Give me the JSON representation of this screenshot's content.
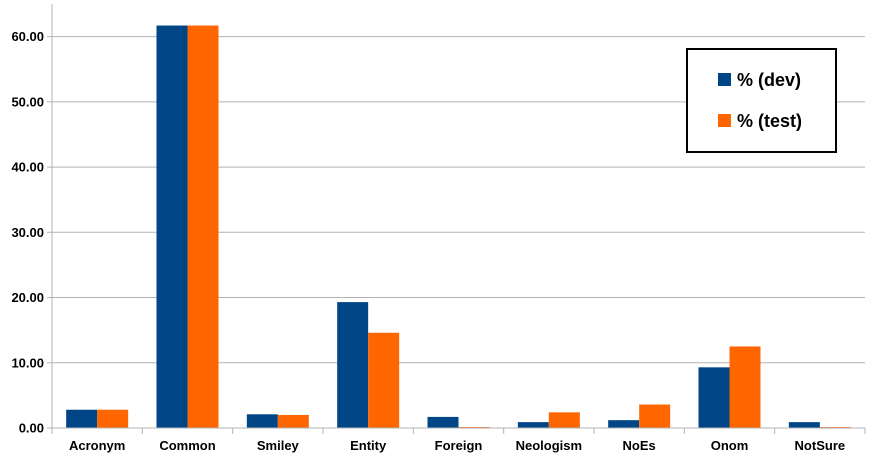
{
  "chart_data": {
    "type": "bar",
    "title": "",
    "xlabel": "",
    "ylabel": "",
    "categories": [
      "Acronym",
      "Common",
      "Smiley",
      "Entity",
      "Foreign",
      "Neologism",
      "NoEs",
      "Onom",
      "NotSure"
    ],
    "series": [
      {
        "name": "% (dev)",
        "color": "#004586",
        "values": [
          2.8,
          61.7,
          2.1,
          19.3,
          1.7,
          0.9,
          1.2,
          9.3,
          0.9
        ]
      },
      {
        "name": "% (test)",
        "color": "#ff6600",
        "values": [
          2.8,
          61.7,
          2.0,
          14.6,
          0.15,
          2.4,
          3.6,
          12.5,
          0.15
        ]
      }
    ],
    "ylim": [
      0,
      65
    ],
    "yticks": [
      0,
      10,
      20,
      30,
      40,
      50,
      60
    ],
    "ytick_format": "2 decimals",
    "grid": true,
    "legend_position": "top-right"
  }
}
